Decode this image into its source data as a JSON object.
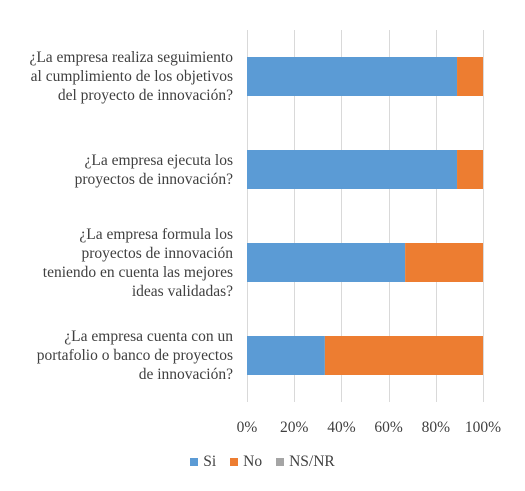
{
  "chart_data": {
    "type": "bar",
    "orientation": "horizontal",
    "stacked": "100%",
    "categories": [
      "¿La empresa realiza seguimiento\nal cumplimiento de los objetivos\ndel proyecto de innovación?",
      "¿La empresa ejecuta los\nproyectos de innovación?",
      "¿La empresa formula los\nproyectos de innovación\nteniendo en cuenta las mejores\nideas validadas?",
      "¿La empresa cuenta con un\nportafolio o banco de proyectos\nde innovación?"
    ],
    "series": [
      {
        "name": "Si",
        "color": "#5b9bd5",
        "values": [
          89,
          89,
          67,
          33
        ]
      },
      {
        "name": "No",
        "color": "#ed7d31",
        "values": [
          11,
          11,
          33,
          67
        ]
      },
      {
        "name": "NS/NR",
        "color": "#a5a5a5",
        "values": [
          0,
          0,
          0,
          0
        ]
      }
    ],
    "x_ticks": [
      "0%",
      "20%",
      "40%",
      "60%",
      "80%",
      "100%"
    ],
    "xlim": [
      0,
      100
    ],
    "grid": true,
    "legend_position": "bottom"
  }
}
